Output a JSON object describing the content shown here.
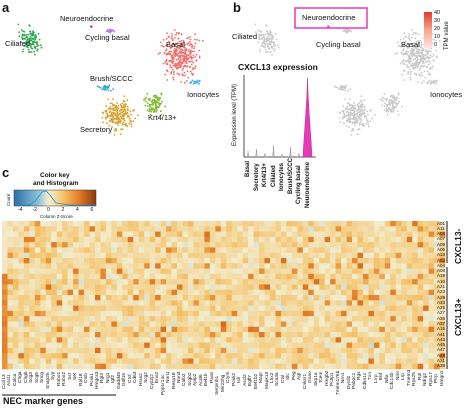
{
  "panels": {
    "a": {
      "letter": "a",
      "clusters": [
        {
          "name": "Ciliated",
          "color": "#2fa84f"
        },
        {
          "name": "Neuroendocrine",
          "color": "#e0219b"
        },
        {
          "name": "Cycling basal",
          "color": "#b679d6"
        },
        {
          "name": "Basal",
          "color": "#ef6f6a"
        },
        {
          "name": "Ionocytes",
          "color": "#4fb3e8"
        },
        {
          "name": "Brush/SCCC",
          "color": "#35a9c9"
        },
        {
          "name": "Krt4/13+",
          "color": "#7ab82a"
        },
        {
          "name": "Secretory",
          "color": "#d6a130"
        }
      ]
    },
    "b": {
      "letter": "b",
      "labels": {
        "ciliated": "Ciliated",
        "neuroendocrine": "Neuroendocrine",
        "cycling_basal": "Cycling basal",
        "basal": "Basal",
        "ionocytes": "Ionocytes",
        "brush": "Brush/SCCC",
        "krt": "Krt4/13+",
        "secretory": "Secretory"
      },
      "colorbar": {
        "label": "TPM value",
        "ticks": [
          "40",
          "30",
          "20",
          "10",
          "0"
        ]
      },
      "highlight_color": "#e83ab8"
    },
    "violin": {
      "title": "CXCL13 expression",
      "ylabel": "Expression level (TPM)",
      "fill_color": "#e83ab8"
    },
    "c": {
      "letter": "c",
      "key_title_1": "Color key",
      "key_title_2": "and Histogram",
      "key_ylabel": "Count",
      "key_xlabel": "Column Z-Score",
      "key_ticks": [
        "-4",
        "-2",
        "0",
        "2",
        "4",
        "6"
      ],
      "group1_label": "CXCL13-",
      "group2_label": "CXCL13+",
      "xlabel": "NEC marker genes"
    }
  },
  "chart_data": [
    {
      "type": "bar",
      "title": "CXCL13 expression",
      "ylabel": "Expression level (TPM)",
      "categories": [
        "Basal",
        "Secretory",
        "Krt4/13+",
        "Ciliated",
        "Ionocytes",
        "Brush/SCCC",
        "Cycling basal",
        "Neuroendocrine"
      ],
      "values": [
        0.3,
        0.4,
        0.2,
        0.6,
        0.1,
        0.5,
        0.2,
        40
      ]
    },
    {
      "type": "heatmap",
      "title": "",
      "rows": [
        "A01",
        "A11",
        "A03",
        "A07",
        "A09",
        "A05",
        "A13",
        "A02",
        "A04",
        "A08",
        "A19",
        "A10",
        "A21",
        "A23",
        "A29",
        "A33",
        "A25",
        "A27",
        "A35",
        "A37",
        "A15",
        "A41",
        "A43",
        "A45",
        "A47",
        "A49",
        "A31",
        "A39"
      ],
      "columns": [
        "Cxcl13",
        "Ascl1",
        "Calca",
        "Chga",
        "Chgb",
        "Scg3",
        "Scg5",
        "Sncg",
        "Snap25",
        "Syp",
        "Robo1",
        "Robo2",
        "Sst",
        "Set",
        "Rpl18",
        "Ctsb",
        "Pcsk1",
        "Hmgcs3",
        "Rgl3",
        "Nrg1",
        "Igf2",
        "Gadd45",
        "Gdf15",
        "Ctcf",
        "Cd63",
        "Hras2",
        "Scg2",
        "Cyp2j2",
        "Eno2",
        "Ppp1r14c",
        "Nnn1",
        "Resp18",
        "Nnn3",
        "Calb2",
        "Scgb2",
        "Aplp2",
        "Acsl6",
        "Eef1b",
        "Pax6",
        "Serpinh1",
        "Mir22hg",
        "Crym",
        "Pcsk2",
        "Islr",
        "Ascl2",
        "Egfl7",
        "Eef1b2",
        "Mapt",
        "Mapk13",
        "Lhx2",
        "Scn3a",
        "Ctsl",
        "Slc",
        "Peg",
        "Agt",
        "Cnksr1",
        "Gnao",
        "Skp1a",
        "Tcem",
        "Hmgb2",
        "Pcbp1",
        "Tmem176b",
        "Nrn1",
        "Dynll2",
        "Pabpc1",
        "Rgs",
        "Cdkn1c",
        "Txn",
        "Lrrp",
        "Ebf",
        "Nfia",
        "Cdc14b",
        "Nmt",
        "Lrp",
        "Tmem3",
        "Rps25",
        "Rpl",
        "Ndrg2",
        "Rps17",
        "Ptrp",
        "Hmgn1"
      ],
      "note": "Column Z-Score color scale from -4 (blue) to 6 (dark orange)"
    }
  ]
}
